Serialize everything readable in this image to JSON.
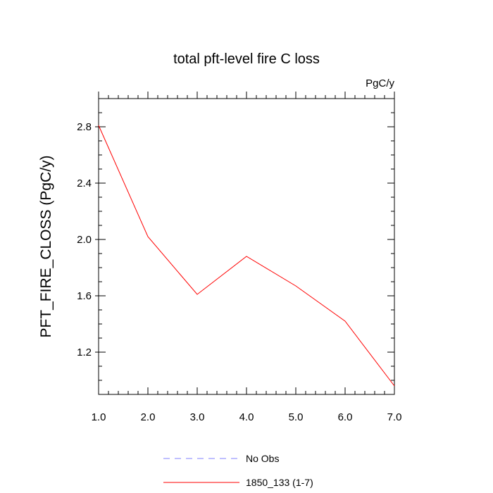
{
  "chart_data": {
    "type": "line",
    "title": "total pft-level fire C loss",
    "units_label": "PgC/y",
    "ylabel": "PFT_FIRE_CLOSS  (PgC/y)",
    "xlabel": "",
    "xlim": [
      1.0,
      7.0
    ],
    "ylim": [
      0.9,
      3.0
    ],
    "x_ticks": [
      1.0,
      2.0,
      3.0,
      4.0,
      5.0,
      6.0,
      7.0
    ],
    "x_tick_labels": [
      "1.0",
      "2.0",
      "3.0",
      "4.0",
      "5.0",
      "6.0",
      "7.0"
    ],
    "y_ticks": [
      1.2,
      1.6,
      2.0,
      2.4,
      2.8
    ],
    "y_tick_labels": [
      "1.2",
      "1.6",
      "2.0",
      "2.4",
      "2.8"
    ],
    "y_minor_step": 0.1,
    "x_minor_step": 0.2,
    "grid": false,
    "series": [
      {
        "name": "1850_133 (1-7)",
        "color": "#ff0000",
        "dash": "solid",
        "x": [
          1,
          2,
          3,
          4,
          5,
          6,
          7
        ],
        "values": [
          2.81,
          2.02,
          1.61,
          1.88,
          1.67,
          1.42,
          0.96
        ]
      }
    ],
    "legend": {
      "placement": "bottom-center",
      "entries": [
        {
          "label": "No Obs",
          "color": "#8080ff",
          "dash": "dashed"
        },
        {
          "label": "1850_133 (1-7)",
          "color": "#ff0000",
          "dash": "solid"
        }
      ]
    }
  }
}
